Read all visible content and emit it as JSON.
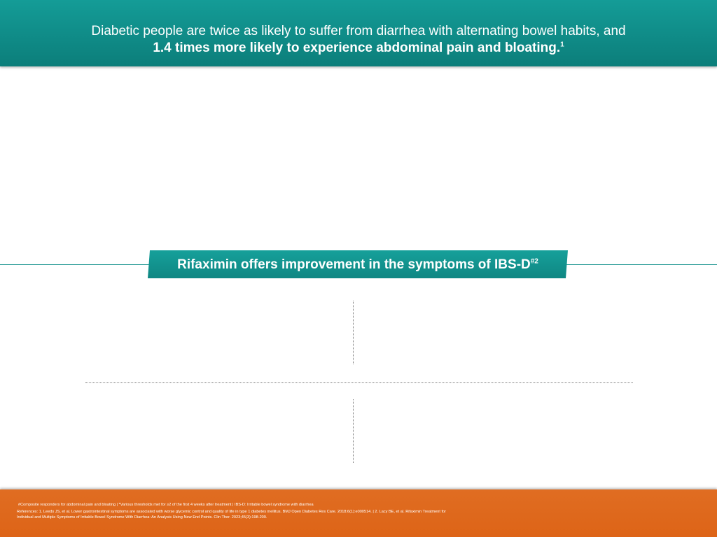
{
  "header": {
    "line1": "Diabetic people are twice as likely to suffer from diarrhea with alternating bowel habits, and",
    "line2": "1.4 times more likely to experience abdominal pain and bloating.",
    "line2_sup": "1"
  },
  "banner": {
    "text": "Rifaximin offers improvement in the symptoms of IBS-D",
    "sup": "#2"
  },
  "footer": {
    "footnote": "#Composite responders for abdominal pain and bloating | *Various thresholds met for ≥2 of the first 4 weeks after treatment | IBS-D: Irritable bowel syndrome with diarrhea",
    "references_line1": "References: 1. Leeds JS, et al. Lower gastrointestinal symptoms are associated with worse glycemic control and quality of life in type 1 diabetes mellitus. BMJ Open Diabetes Res Care. 2018;6(1):e000514. | 2. Lacy BE, et al. Rifaximin Treatment for",
    "references_line2": "Individual and Multiple Symptoms of Irritable Bowel Syndrome With Diarrhea: An Analysis Using New End Points. Clin Ther. 2023;45(3):198-209."
  },
  "colors": {
    "teal": "#0f8a86",
    "orange": "#e06d22",
    "divider": "#7a7a7a"
  }
}
